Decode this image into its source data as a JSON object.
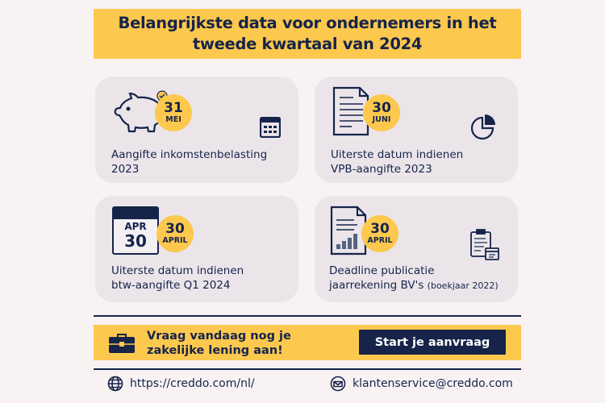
{
  "header": {
    "title": "Belangrijkste data voor ondernemers in het tweede kwartaal van 2024"
  },
  "cards": [
    {
      "day": "31",
      "month": "MEI",
      "line1": "Aangifte inkomstenbelasting",
      "line2": "2023",
      "main_icon": "piggy-bank-icon",
      "side_icon": "calculator-icon"
    },
    {
      "day": "30",
      "month": "JUNI",
      "line1": "Uiterste datum indienen",
      "line2": "VPB-aangifte 2023",
      "main_icon": "document-icon",
      "side_icon": "pie-chart-icon"
    },
    {
      "day": "30",
      "month": "APRIL",
      "line1": "Uiterste datum indienen",
      "line2": "btw-aangifte Q1 2024",
      "main_icon": "calendar-icon",
      "side_icon": "",
      "calendar_month": "APR",
      "calendar_day": "30"
    },
    {
      "day": "30",
      "month": "APRIL",
      "line1": "Deadline publicatie",
      "line2": "jaarrekening BV's",
      "line2_small": "(boekjaar 2022)",
      "main_icon": "report-chart-icon",
      "side_icon": "clipboard-icon"
    }
  ],
  "banner": {
    "text": "Vraag vandaag nog je zakelijke lening aan!",
    "button": "Start je aanvraag",
    "icon": "briefcase-icon"
  },
  "footer": {
    "website": "https://creddo.com/nl/",
    "email": "klantenservice@creddo.com"
  },
  "colors": {
    "accent": "#fcc84e",
    "navy": "#16244a",
    "card": "#ebe5ea",
    "background": "#f8f2f3"
  }
}
